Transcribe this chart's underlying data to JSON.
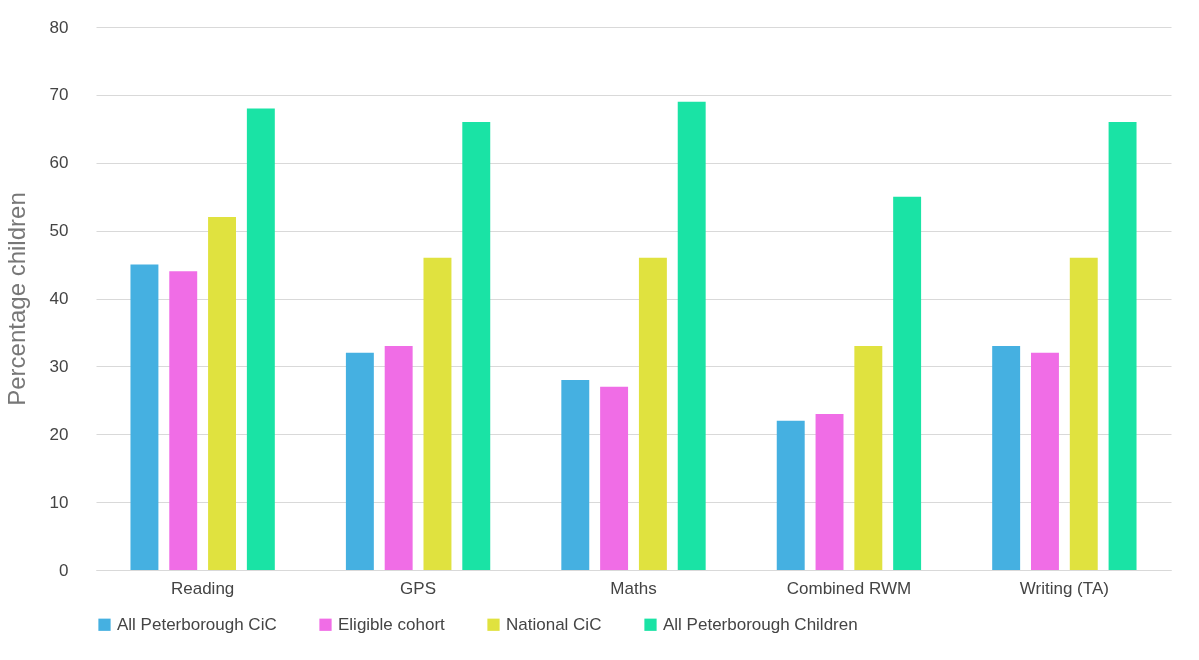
{
  "chart_data": {
    "type": "bar",
    "ylabel": "Percentage children",
    "categories": [
      "Reading",
      "GPS",
      "Maths",
      "Combined RWM",
      "Writing (TA)"
    ],
    "series": [
      {
        "name": "All Peterborough CiC",
        "color": "#45b0e1",
        "values": [
          45,
          32,
          28,
          22,
          33
        ]
      },
      {
        "name": "Eligible cohort",
        "color": "#f06de6",
        "values": [
          44,
          33,
          27,
          23,
          32
        ]
      },
      {
        "name": "National CiC",
        "color": "#e0e23f",
        "values": [
          52,
          46,
          46,
          33,
          46
        ]
      },
      {
        "name": "All Peterborough Children",
        "color": "#1ae3a5",
        "values": [
          68,
          66,
          69,
          55,
          66
        ]
      }
    ],
    "ylim": [
      0,
      80
    ],
    "yticks": [
      0,
      10,
      20,
      30,
      40,
      50,
      60,
      70,
      80
    ],
    "grid": "y",
    "legend": "bottom"
  }
}
